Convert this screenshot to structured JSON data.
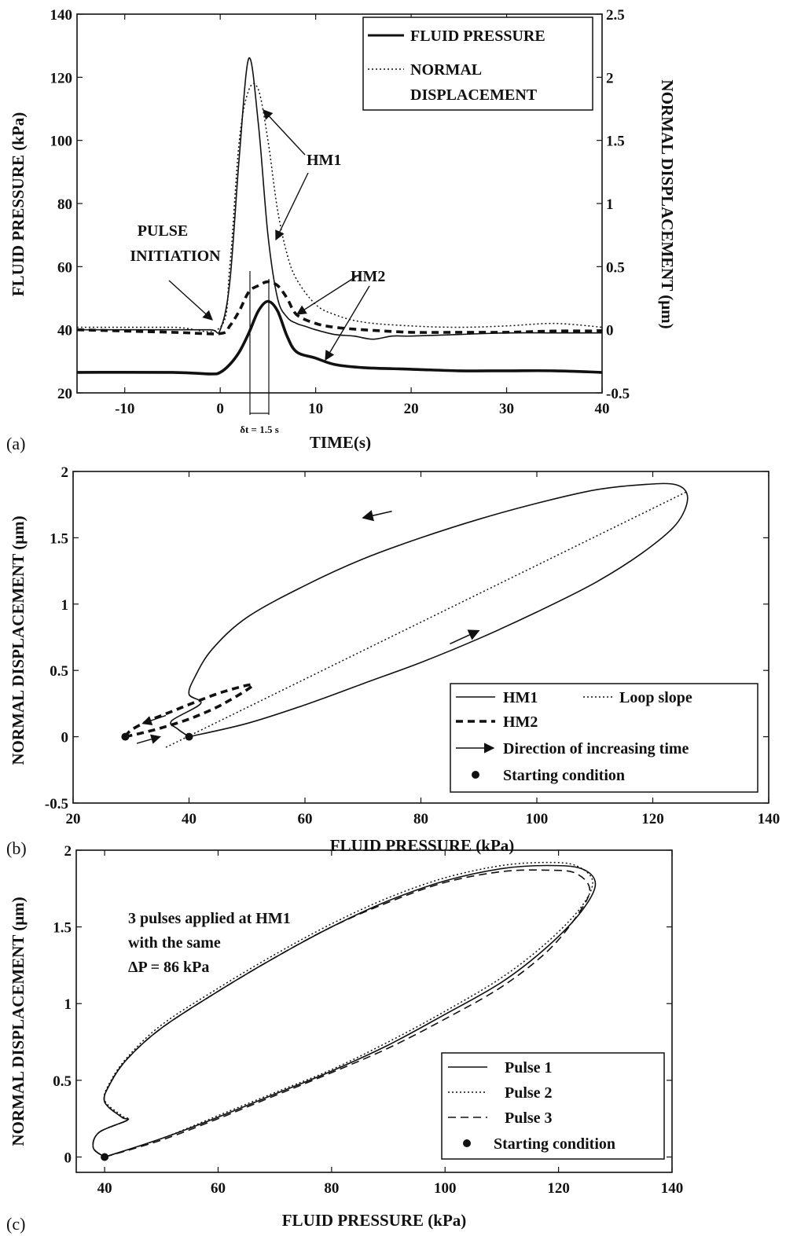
{
  "chart_data": [
    {
      "id": "a",
      "type": "line",
      "panel_label": "(a)",
      "xlabel": "TIME(s)",
      "ylabel": "FLUID PRESSURE (kPa)",
      "y2label": "NORMAL DISPLACEMENT (μm)",
      "xlim": [
        -15,
        40
      ],
      "ylim": [
        20,
        140
      ],
      "y2lim": [
        -0.5,
        2.5
      ],
      "xticks": [
        -10,
        0,
        10,
        20,
        30,
        40
      ],
      "yticks": [
        20,
        40,
        60,
        80,
        100,
        120,
        140
      ],
      "y2ticks": [
        -0.5,
        0,
        0.5,
        1,
        1.5,
        2,
        2.5
      ],
      "legend": {
        "position": "top-right",
        "entries": [
          "FLUID PRESSURE",
          "NORMAL",
          "DISPLACEMENT"
        ]
      },
      "annotations": [
        "PULSE",
        "INITIATION",
        "HM1",
        "HM2",
        "δt = 1.5 s"
      ],
      "series": [
        {
          "name": "FLUID PRESSURE",
          "axis": "left",
          "style": "solid-thin",
          "x": [
            -15,
            -5,
            -1,
            0,
            1,
            2,
            3,
            4,
            5,
            6,
            7,
            8,
            9,
            10,
            12,
            14,
            16,
            18,
            20,
            25,
            30,
            35,
            40
          ],
          "y": [
            40,
            40,
            40,
            40,
            55,
            95,
            126,
            105,
            70,
            50,
            44,
            42,
            41,
            40,
            38.5,
            38,
            37,
            38,
            38,
            38.5,
            39,
            39,
            39
          ]
        },
        {
          "name": "NORMAL DISPLACEMENT",
          "axis": "right",
          "style": "dotted",
          "x": [
            -15,
            -5,
            0,
            1,
            2,
            3,
            4,
            5,
            6,
            7,
            8,
            10,
            12,
            15,
            20,
            25,
            30,
            35,
            40
          ],
          "y": [
            0.02,
            0.02,
            0.02,
            0.5,
            1.5,
            1.9,
            1.9,
            1.5,
            0.95,
            0.6,
            0.4,
            0.2,
            0.12,
            0.06,
            0.03,
            0.02,
            0.03,
            0.05,
            0.02
          ]
        },
        {
          "name": "FLUID PRESSURE HM2",
          "axis": "left",
          "style": "solid-thick",
          "x": [
            -15,
            -5,
            -1,
            0,
            1,
            2,
            3,
            4,
            5,
            6,
            7,
            8,
            10,
            12,
            15,
            20,
            25,
            30,
            35,
            40
          ],
          "y": [
            26.5,
            26.5,
            26,
            26.5,
            29,
            33,
            39,
            46,
            49,
            46,
            38,
            33,
            31,
            29,
            28,
            27.5,
            27,
            27,
            27,
            26.5
          ]
        },
        {
          "name": "NORMAL DISPLACEMENT HM2",
          "axis": "right",
          "style": "dashed-thick",
          "x": [
            -15,
            -5,
            0,
            1,
            2,
            3,
            4,
            5,
            6,
            7,
            8,
            10,
            12,
            15,
            20,
            25,
            30,
            35,
            40
          ],
          "y": [
            0,
            -0.02,
            -0.03,
            0.03,
            0.15,
            0.3,
            0.35,
            0.38,
            0.35,
            0.25,
            0.12,
            0.05,
            0.02,
            0,
            -0.02,
            -0.02,
            -0.02,
            -0.01,
            -0.01
          ]
        }
      ]
    },
    {
      "id": "b",
      "type": "line",
      "panel_label": "(b)",
      "xlabel": "FLUID PRESSURE (kPa)",
      "ylabel": "NORMAL DISPLACEMENT (μm)",
      "xlim": [
        20,
        140
      ],
      "ylim": [
        -0.5,
        2
      ],
      "xticks": [
        20,
        40,
        60,
        80,
        100,
        120,
        140
      ],
      "yticks": [
        -0.5,
        0,
        0.5,
        1,
        1.5,
        2
      ],
      "legend": {
        "position": "bottom-right",
        "entries": [
          "HM1",
          "Loop slope",
          "HM2",
          "Direction of increasing time",
          "Starting condition"
        ]
      },
      "series": [
        {
          "name": "HM1",
          "style": "solid",
          "x": [
            40,
            50,
            60,
            70,
            80,
            90,
            100,
            110,
            118,
            124,
            126,
            124,
            118,
            110,
            100,
            90,
            80,
            70,
            60,
            50,
            44,
            41,
            40,
            42,
            37,
            38,
            40
          ],
          "y": [
            0,
            0.1,
            0.24,
            0.4,
            0.56,
            0.74,
            0.94,
            1.16,
            1.38,
            1.6,
            1.8,
            1.9,
            1.9,
            1.86,
            1.76,
            1.64,
            1.5,
            1.34,
            1.14,
            0.9,
            0.66,
            0.45,
            0.32,
            0.25,
            0.12,
            0.06,
            0
          ]
        },
        {
          "name": "Loop slope",
          "style": "dotted",
          "x": [
            36,
            126
          ],
          "y": [
            -0.08,
            1.85
          ]
        },
        {
          "name": "HM2",
          "style": "dashed-thick",
          "x": [
            29,
            33,
            37,
            41,
            46,
            51,
            46,
            41,
            37,
            33,
            30,
            29
          ],
          "y": [
            0,
            0.04,
            0.09,
            0.15,
            0.25,
            0.39,
            0.34,
            0.26,
            0.19,
            0.12,
            0.05,
            0
          ]
        }
      ],
      "start_points": [
        [
          40,
          0
        ],
        [
          29,
          0
        ]
      ],
      "arrows": [
        {
          "x": [
            85,
            90
          ],
          "y": [
            0.7,
            0.8
          ]
        },
        {
          "x": [
            75,
            70
          ],
          "y": [
            1.7,
            1.65
          ]
        }
      ]
    },
    {
      "id": "c",
      "type": "line",
      "panel_label": "(c)",
      "xlabel": "FLUID PRESSURE (kPa)",
      "ylabel": "NORMAL DISPLACEMENT (μm)",
      "xlim": [
        35,
        140
      ],
      "ylim": [
        -0.1,
        2
      ],
      "xticks": [
        40,
        60,
        80,
        100,
        120,
        140
      ],
      "yticks": [
        0,
        0.5,
        1,
        1.5,
        2
      ],
      "annotation_lines": [
        "3 pulses applied at HM1",
        "with the same",
        "ΔP = 86 kPa"
      ],
      "legend": {
        "position": "bottom-right",
        "entries": [
          "Pulse 1",
          "Pulse 2",
          "Pulse 3",
          "Starting condition"
        ]
      },
      "series": [
        {
          "name": "Pulse 1",
          "style": "solid",
          "x": [
            40,
            50,
            60,
            70,
            80,
            90,
            100,
            110,
            118,
            124,
            126.5,
            124,
            118,
            110,
            100,
            90,
            80,
            70,
            60,
            50,
            44,
            41,
            40,
            43,
            44,
            39,
            38,
            40
          ],
          "y": [
            0,
            0.12,
            0.26,
            0.41,
            0.56,
            0.73,
            0.93,
            1.14,
            1.37,
            1.6,
            1.78,
            1.88,
            1.9,
            1.88,
            1.8,
            1.67,
            1.5,
            1.3,
            1.08,
            0.84,
            0.64,
            0.48,
            0.36,
            0.26,
            0.24,
            0.16,
            0.06,
            0
          ]
        },
        {
          "name": "Pulse 2",
          "style": "dotted",
          "x": [
            40,
            50,
            60,
            70,
            80,
            90,
            100,
            110,
            118,
            124,
            126,
            123,
            118,
            110,
            100,
            90,
            80,
            70,
            60,
            50,
            44,
            41,
            40,
            43,
            44,
            39,
            38,
            40
          ],
          "y": [
            0,
            0.12,
            0.27,
            0.42,
            0.57,
            0.75,
            0.95,
            1.17,
            1.4,
            1.63,
            1.8,
            1.9,
            1.92,
            1.9,
            1.82,
            1.69,
            1.52,
            1.32,
            1.1,
            0.86,
            0.65,
            0.49,
            0.37,
            0.27,
            0.24,
            0.16,
            0.06,
            0
          ]
        },
        {
          "name": "Pulse 3",
          "style": "dashed",
          "x": [
            40,
            50,
            60,
            70,
            80,
            90,
            100,
            110,
            118,
            123,
            125.5,
            123,
            118,
            110,
            100,
            90,
            80,
            70,
            60,
            50,
            44,
            41,
            40,
            43,
            44,
            39,
            38,
            40
          ],
          "y": [
            0,
            0.11,
            0.25,
            0.4,
            0.55,
            0.71,
            0.9,
            1.11,
            1.34,
            1.56,
            1.74,
            1.85,
            1.87,
            1.86,
            1.79,
            1.66,
            1.5,
            1.3,
            1.08,
            0.84,
            0.64,
            0.48,
            0.36,
            0.26,
            0.24,
            0.16,
            0.06,
            0
          ]
        }
      ],
      "start_points": [
        [
          40,
          0
        ]
      ]
    }
  ]
}
